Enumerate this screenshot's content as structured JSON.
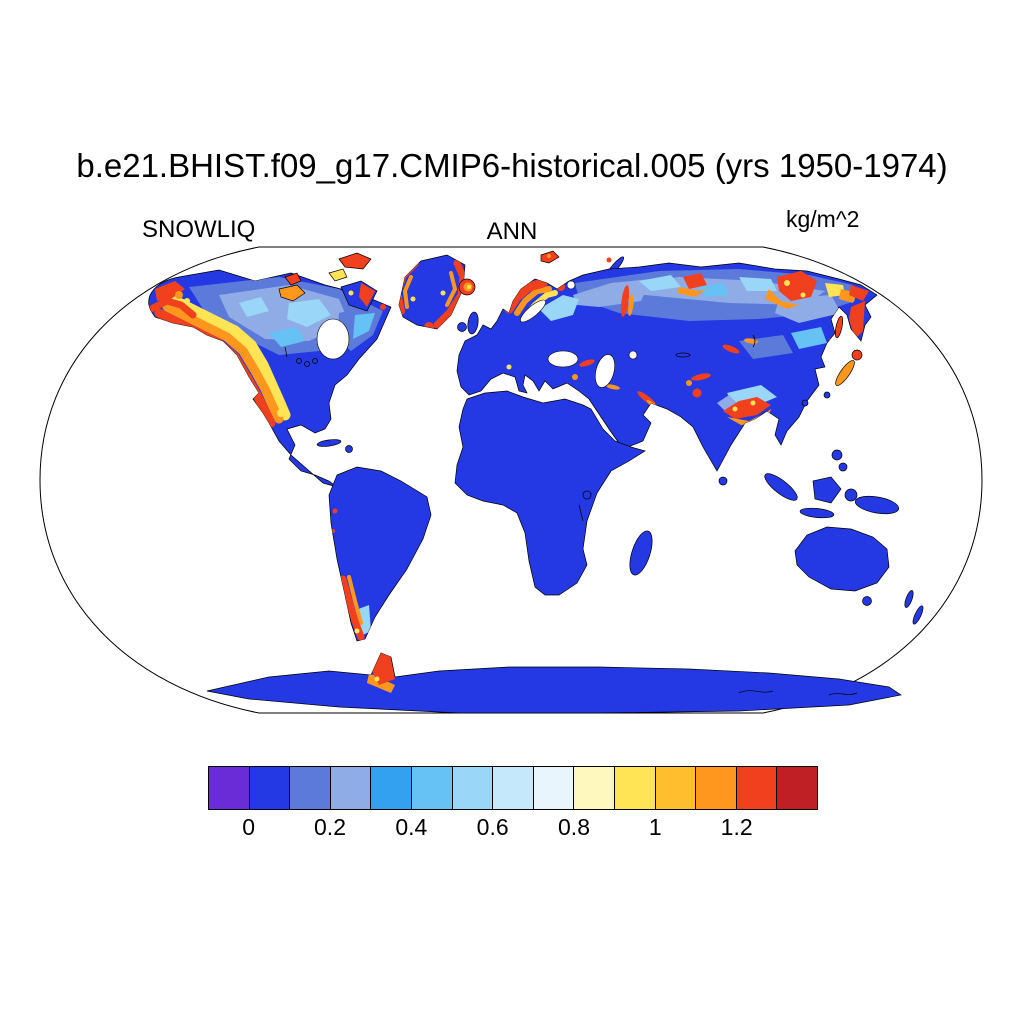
{
  "figure": {
    "title": "b.e21.BHIST.f09_g17.CMIP6-historical.005 (yrs 1950-1974)",
    "variable_label": "SNOWLIQ",
    "season_label": "ANN",
    "units_label": "kg/m^2"
  },
  "chart_data": {
    "type": "heatmap",
    "title": "b.e21.BHIST.f09_g17.CMIP6-historical.005 (yrs 1950-1974)",
    "variable": "SNOWLIQ",
    "statistic": "ANN",
    "units": "kg/m^2",
    "projection": "robinson",
    "ocean_masked": true,
    "colorbar": {
      "orientation": "horizontal",
      "levels": [
        -0.1,
        0,
        0.1,
        0.2,
        0.3,
        0.4,
        0.5,
        0.6,
        0.7,
        0.8,
        0.9,
        1,
        1.1,
        1.2,
        1.3,
        1.4
      ],
      "colors": [
        "#6A2CD6",
        "#2438E4",
        "#5C7ADA",
        "#8FACE6",
        "#33A0F0",
        "#66C2F4",
        "#99D6F8",
        "#C6E8FB",
        "#E8F5FD",
        "#FFF8BE",
        "#FFE455",
        "#FFBE2D",
        "#FF971E",
        "#F0401E",
        "#BE2025"
      ],
      "tick_labels": [
        "0",
        "0.2",
        "0.4",
        "0.6",
        "0.8",
        "1",
        "1.2"
      ],
      "tick_level_indices": [
        1,
        3,
        5,
        7,
        9,
        11,
        13
      ]
    },
    "pattern_summary": {
      "near_zero_regions": "Most land is deep blue (0-0.1): tropics and mid-latitudes, Africa, Australia, most of South America, Antarctic interior, Greenland interior",
      "moderate_regions": [
        "interior Canada",
        "northern Siberia lowlands",
        "Labrador",
        "Finland and northwest Russia",
        "Tibetan Plateau margins",
        "Mongolia / northeast China"
      ],
      "high_regions": [
        "Alaska and western Canadian cordillera",
        "Canadian Arctic islands",
        "Greenland coastal margins",
        "Iceland",
        "Svalbard",
        "Scandinavian mountains",
        "Ural Mountains",
        "Caucasus and Zagros",
        "central and eastern Siberian mountains",
        "Kamchatka",
        "Sakhalin and Japan",
        "Tibetan Plateau / Himalaya",
        "southern Andes (Patagonia)",
        "Antarctic Peninsula"
      ]
    }
  },
  "colors": {
    "background": "#FFFFFF",
    "land_base": "#2438E4",
    "coastline": "#000000",
    "text": "#000000"
  }
}
